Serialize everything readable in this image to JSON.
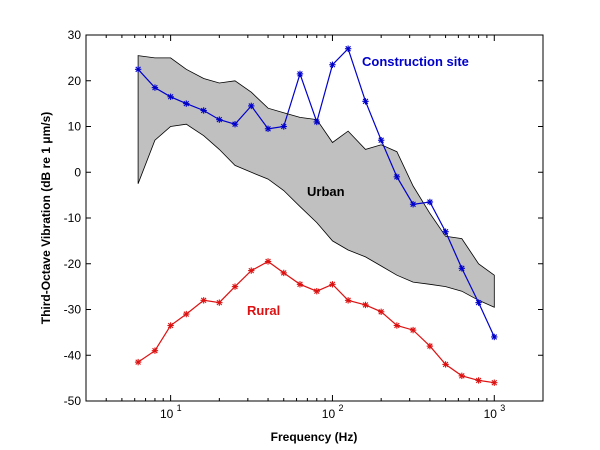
{
  "chart_data": {
    "type": "line",
    "xlabel": "Frequency (Hz)",
    "ylabel": "Third-Octave Vibration (dB re 1 μm/s)",
    "xscale": "log",
    "xlim": [
      3,
      2000
    ],
    "ylim": [
      -50,
      30
    ],
    "x_ticks": [
      {
        "value": 10,
        "base": "10",
        "exp": "1"
      },
      {
        "value": 100,
        "base": "10",
        "exp": "2"
      },
      {
        "value": 1000,
        "base": "10",
        "exp": "3"
      }
    ],
    "y_ticks": [
      -50,
      -40,
      -30,
      -20,
      -10,
      0,
      10,
      20,
      30
    ],
    "grid": false,
    "band": {
      "label": "Urban",
      "color": "#c0c0c0",
      "x": [
        6.3,
        8,
        10,
        12.5,
        16,
        20,
        25,
        31.5,
        40,
        50,
        63,
        80,
        100,
        125,
        160,
        200,
        250,
        315,
        400,
        500,
        630,
        800,
        1000
      ],
      "upper": [
        25.5,
        25,
        25,
        22.5,
        20.5,
        19.5,
        20,
        17.5,
        14,
        13,
        12,
        11.5,
        6.5,
        9,
        5,
        6,
        4.5,
        -3,
        -9,
        -14,
        -14.5,
        -20,
        -22.5
      ],
      "lower": [
        -2.5,
        7,
        10,
        10.5,
        8,
        5,
        1.5,
        0,
        -1.5,
        -4,
        -7.5,
        -11,
        -15,
        -17,
        -18.5,
        -20.5,
        -22.5,
        -24,
        -24.5,
        -25,
        -26,
        -28,
        -29.5
      ]
    },
    "series": [
      {
        "name": "Construction site",
        "color": "#0000cc",
        "x": [
          6.3,
          8,
          10,
          12.5,
          16,
          20,
          25,
          31.5,
          40,
          50,
          63,
          80,
          100,
          125,
          160,
          200,
          250,
          315,
          400,
          500,
          630,
          800,
          1000
        ],
        "values": [
          22.5,
          18.5,
          16.5,
          15,
          13.5,
          11.5,
          10.5,
          14.5,
          9.5,
          10,
          21.5,
          11,
          23.5,
          27,
          15.5,
          7,
          -1,
          -7,
          -6.5,
          -13,
          -21,
          -28.5,
          -36
        ]
      },
      {
        "name": "Rural",
        "color": "#dd1111",
        "x": [
          6.3,
          8,
          10,
          12.5,
          16,
          20,
          25,
          31.5,
          40,
          50,
          63,
          80,
          100,
          125,
          160,
          200,
          250,
          315,
          400,
          500,
          630,
          800,
          1000
        ],
        "values": [
          -41.5,
          -39,
          -33.5,
          -31,
          -28,
          -28.5,
          -25,
          -21.5,
          -19.5,
          -22,
          -24.5,
          -26,
          -24.5,
          -28,
          -29,
          -30.5,
          -33.5,
          -34.5,
          -38,
          -42,
          -44.5,
          -45.5,
          -46
        ]
      }
    ]
  }
}
